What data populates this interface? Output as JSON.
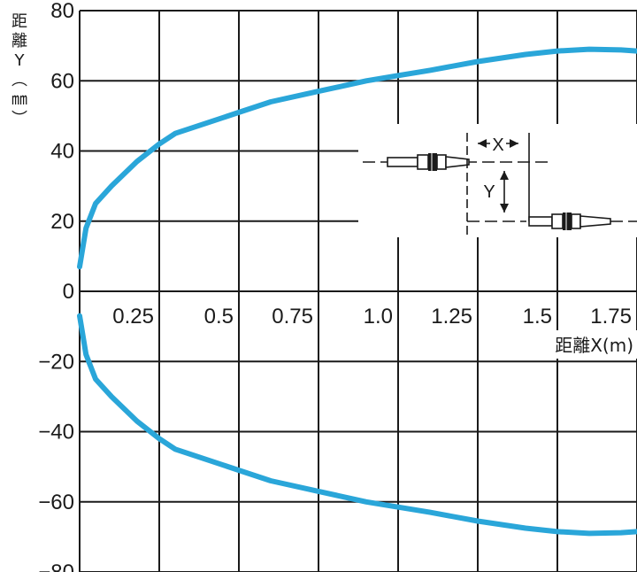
{
  "chart_data": {
    "type": "line",
    "xlabel": "距離X(m)",
    "ylabel_chars": [
      "距",
      "離",
      "Y",
      "︵",
      "㎜",
      "︶"
    ],
    "x_ticks": [
      {
        "value": 0.25,
        "label": "0.25"
      },
      {
        "value": 0.5,
        "label": "0.5"
      },
      {
        "value": 0.75,
        "label": "0.75"
      },
      {
        "value": 1.0,
        "label": "1.0"
      },
      {
        "value": 1.25,
        "label": "1.25"
      },
      {
        "value": 1.5,
        "label": "1.5"
      },
      {
        "value": 1.75,
        "label": "1.75"
      }
    ],
    "y_ticks": [
      {
        "value": 80,
        "label": "80"
      },
      {
        "value": 60,
        "label": "60"
      },
      {
        "value": 40,
        "label": "40"
      },
      {
        "value": 20,
        "label": "20"
      },
      {
        "value": 0,
        "label": "0"
      },
      {
        "value": -20,
        "label": "−20"
      },
      {
        "value": -40,
        "label": "−40"
      },
      {
        "value": -60,
        "label": "−60"
      },
      {
        "value": -80,
        "label": "−80"
      }
    ],
    "xlim": [
      0,
      1.75
    ],
    "ylim": [
      -80,
      80
    ],
    "grid": true,
    "series": [
      {
        "color": "#2aa6d9",
        "x": [
          0.0,
          0.02,
          0.05,
          0.1,
          0.18,
          0.25,
          0.3,
          0.4,
          0.5,
          0.6,
          0.75,
          0.9,
          1.0,
          1.1,
          1.25,
          1.4,
          1.5,
          1.6,
          1.7,
          1.75
        ],
        "y": [
          7,
          18,
          25,
          30,
          37,
          42,
          45,
          48,
          51,
          54,
          57,
          60,
          61.5,
          63,
          65.5,
          67.5,
          68.5,
          69,
          68.8,
          68.5
        ]
      },
      {
        "color": "#2aa6d9",
        "x": [
          0.0,
          0.02,
          0.05,
          0.1,
          0.18,
          0.25,
          0.3,
          0.4,
          0.5,
          0.6,
          0.75,
          0.9,
          1.0,
          1.1,
          1.25,
          1.4,
          1.5,
          1.6,
          1.7,
          1.75
        ],
        "y": [
          -7,
          -18,
          -25,
          -30,
          -37,
          -42,
          -45,
          -48,
          -51,
          -54,
          -57,
          -60,
          -61.5,
          -63,
          -65.5,
          -67.5,
          -68.5,
          -69,
          -68.8,
          -68.5
        ]
      }
    ]
  },
  "inset": {
    "x_label": "X",
    "y_label": "Y"
  }
}
